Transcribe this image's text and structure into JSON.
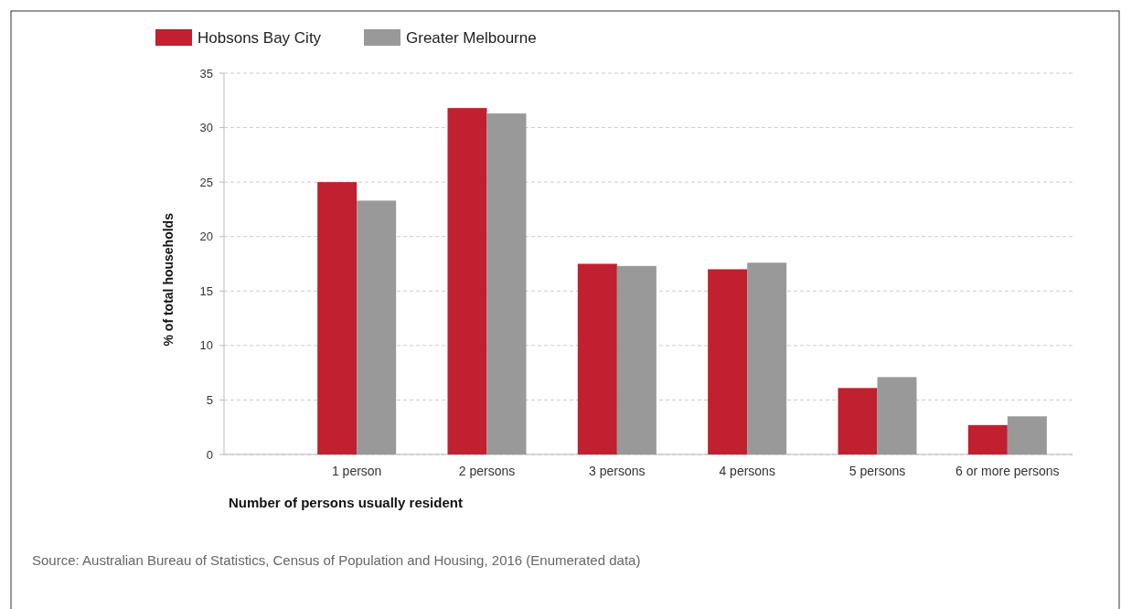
{
  "chart_data": {
    "type": "bar",
    "xlabel": "Number of persons usually resident",
    "ylabel": "% of total households",
    "categories": [
      "1 person",
      "2 persons",
      "3 persons",
      "4 persons",
      "5 persons",
      "6 or more persons"
    ],
    "series": [
      {
        "name": "Hobsons Bay City",
        "color": "#c0202f",
        "values": [
          25.0,
          31.8,
          17.5,
          17.0,
          6.1,
          2.7
        ]
      },
      {
        "name": "Greater Melbourne",
        "color": "#999999",
        "values": [
          23.3,
          31.3,
          17.3,
          17.6,
          7.1,
          3.5
        ]
      }
    ],
    "ylim": [
      0,
      35
    ],
    "yticks": [
      0,
      5,
      10,
      15,
      20,
      25,
      30,
      35
    ],
    "grid": "y",
    "legend": "top left",
    "annotations": [
      "Source: Australian Bureau of Statistics, Census of Population and Housing, 2016 (Enumerated data)"
    ]
  }
}
